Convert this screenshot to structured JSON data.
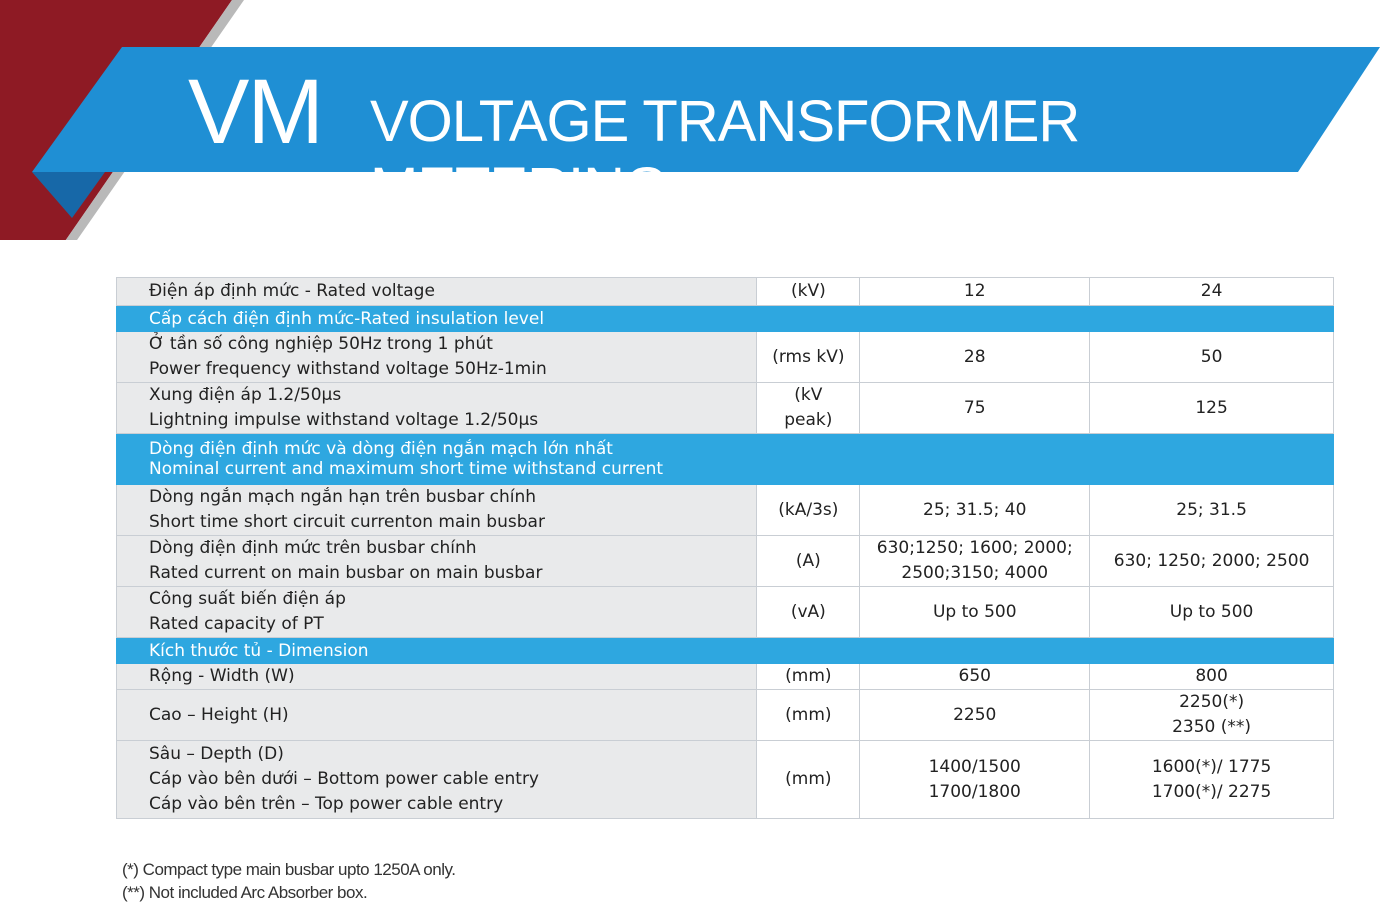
{
  "header": {
    "code": "VM",
    "title": "VOLTAGE TRANSFORMER METERING",
    "colors": {
      "banner": "#1f8fd4",
      "red": "#8e1a24",
      "section": "#2ea7e0"
    }
  },
  "table": {
    "rows": [
      {
        "type": "data",
        "label": [
          "Điện áp định mức - Rated voltage"
        ],
        "unit": "(kV)",
        "v12": [
          "12"
        ],
        "v24": [
          "24"
        ]
      },
      {
        "type": "section",
        "label": [
          "Cấp cách điện định mức-Rated insulation level"
        ]
      },
      {
        "type": "data",
        "label": [
          "Ở tần số công nghiệp 50Hz trong 1 phút",
          "Power frequency withstand voltage 50Hz-1min"
        ],
        "unit": "(rms kV)",
        "v12": [
          "28"
        ],
        "v24": [
          "50"
        ]
      },
      {
        "type": "data",
        "label": [
          "Xung điện áp 1.2/50µs",
          "Lightning impulse withstand voltage  1.2/50µs"
        ],
        "unit": "(kV peak)",
        "v12": [
          "75"
        ],
        "v24": [
          "125"
        ]
      },
      {
        "type": "section",
        "label": [
          "Dòng điện định mức và dòng điện ngắn mạch lớn nhất",
          "Nominal current and maximum short time withstand current"
        ]
      },
      {
        "type": "data",
        "label": [
          "Dòng ngắn mạch ngắn hạn trên busbar chính",
          "Short time short circuit currenton main busbar"
        ],
        "unit": "(kA/3s)",
        "v12": [
          "25; 31.5; 40"
        ],
        "v24": [
          "25; 31.5"
        ]
      },
      {
        "type": "data",
        "label": [
          "Dòng điện định mức trên busbar chính",
          "Rated current on main busbar on main busbar"
        ],
        "unit": "(A)",
        "v12": [
          "630;1250; 1600; 2000;",
          "2500;3150; 4000"
        ],
        "v24": [
          "630; 1250; 2000; 2500"
        ]
      },
      {
        "type": "data",
        "label": [
          "Công suất biến điện áp",
          "Rated capacity of PT"
        ],
        "unit": "(vA)",
        "v12": [
          "Up to 500"
        ],
        "v24": [
          "Up to 500"
        ]
      },
      {
        "type": "section",
        "label": [
          "Kích thước tủ - Dimension"
        ]
      },
      {
        "type": "data",
        "label": [
          "Rộng - Width (W)"
        ],
        "unit": "(mm)",
        "v12": [
          "650"
        ],
        "v24": [
          "800"
        ]
      },
      {
        "type": "data",
        "label": [
          "Cao – Height (H)"
        ],
        "unit": "(mm)",
        "v12": [
          "2250"
        ],
        "v24": [
          "2250(*)",
          "2350 (**)"
        ]
      },
      {
        "type": "data",
        "label": [
          "Sâu – Depth (D)",
          "Cáp vào bên dưới – Bottom power cable entry",
          "Cáp vào bên trên – Top power cable entry"
        ],
        "unit": "(mm)",
        "v12": [
          "1400/1500",
          "1700/1800"
        ],
        "v24": [
          "1600(*)/ 1775",
          "1700(*)/ 2275"
        ]
      }
    ]
  },
  "notes": [
    "(*) Compact type main busbar upto 1250A only.",
    "(**)  Not included Arc Absorber box."
  ]
}
